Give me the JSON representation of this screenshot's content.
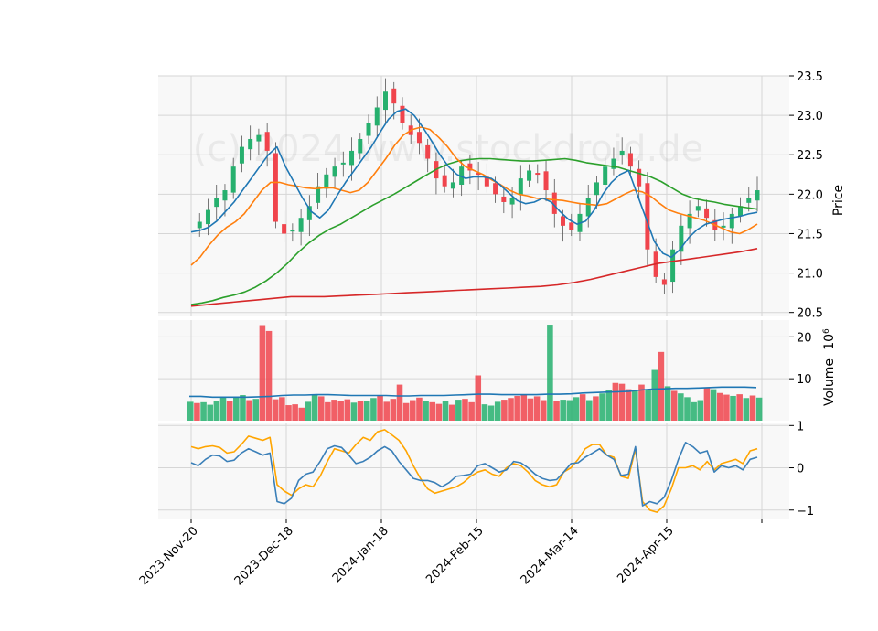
{
  "watermark": "(c) 2024 www.stockdroid.de",
  "colors": {
    "panel_bg": "#f8f8f8",
    "grid": "#d6d6d6",
    "up": "#26b06e",
    "down": "#f0444c",
    "ma_short": "#1f77b4",
    "ma_mid": "#ff7f0e",
    "ma_long": "#2ca02c",
    "ma_200": "#d62728",
    "vol_avg": "#1f77b4",
    "osc_a": "#3a7fb8",
    "osc_b": "#ffa500"
  },
  "chart_data": {
    "type": "candlestick",
    "x_tick_labels": [
      "2023-Nov-20",
      "2023-Dec-18",
      "2024-Jan-18",
      "2024-Feb-15",
      "2024-Mar-14",
      "2024-Apr-15"
    ],
    "price_panel": {
      "ylabel": "Price",
      "ylim": [
        20.45,
        23.5
      ],
      "yticks": [
        "20.5",
        "21.0",
        "21.5",
        "22.0",
        "22.5",
        "23.0",
        "23.5"
      ],
      "close_path": [
        21.6,
        21.65,
        21.8,
        21.95,
        22.05,
        22.35,
        22.6,
        22.7,
        22.75,
        22.55,
        21.65,
        21.5,
        21.55,
        21.7,
        21.85,
        22.1,
        22.25,
        22.35,
        22.4,
        22.55,
        22.7,
        22.9,
        23.1,
        23.3,
        23.15,
        22.9,
        22.75,
        22.65,
        22.45,
        22.2,
        22.1,
        22.15,
        22.35,
        22.3,
        22.25,
        22.1,
        22.0,
        21.9,
        21.95,
        22.2,
        22.3,
        22.25,
        22.05,
        21.75,
        21.6,
        21.55,
        21.75,
        21.95,
        22.15,
        22.35,
        22.45,
        22.55,
        22.35,
        22.1,
        21.3,
        20.95,
        20.85,
        21.3,
        21.6,
        21.75,
        21.85,
        21.7,
        21.55,
        21.6,
        21.75,
        21.85,
        21.95,
        22.05
      ],
      "ma_short": [
        21.52,
        21.54,
        21.58,
        21.66,
        21.78,
        21.9,
        22.05,
        22.2,
        22.35,
        22.5,
        22.6,
        22.35,
        22.15,
        21.95,
        21.78,
        21.7,
        21.8,
        21.98,
        22.15,
        22.3,
        22.45,
        22.6,
        22.78,
        22.95,
        23.05,
        23.08,
        23.0,
        22.85,
        22.68,
        22.5,
        22.35,
        22.25,
        22.2,
        22.22,
        22.22,
        22.2,
        22.12,
        22.02,
        21.92,
        21.88,
        21.9,
        21.95,
        21.9,
        21.78,
        21.68,
        21.62,
        21.66,
        21.8,
        22.0,
        22.15,
        22.25,
        22.3,
        22.0,
        21.7,
        21.4,
        21.25,
        21.2,
        21.3,
        21.45,
        21.55,
        21.62,
        21.65,
        21.68,
        21.7,
        21.72,
        21.75,
        21.77
      ],
      "ma_mid": [
        21.1,
        21.2,
        21.35,
        21.48,
        21.58,
        21.65,
        21.75,
        21.9,
        22.05,
        22.15,
        22.15,
        22.12,
        22.1,
        22.08,
        22.07,
        22.08,
        22.08,
        22.05,
        22.02,
        22.05,
        22.15,
        22.3,
        22.45,
        22.62,
        22.75,
        22.82,
        22.85,
        22.82,
        22.72,
        22.6,
        22.45,
        22.35,
        22.3,
        22.25,
        22.18,
        22.12,
        22.05,
        22.0,
        21.98,
        21.95,
        21.94,
        21.93,
        21.92,
        21.9,
        21.88,
        21.87,
        21.86,
        21.88,
        21.94,
        22.0,
        22.05,
        22.03,
        21.97,
        21.88,
        21.8,
        21.76,
        21.73,
        21.7,
        21.67,
        21.62,
        21.57,
        21.52,
        21.5,
        21.55,
        21.62
      ],
      "ma_long": [
        20.6,
        20.62,
        20.65,
        20.69,
        20.72,
        20.76,
        20.82,
        20.9,
        21.0,
        21.12,
        21.26,
        21.38,
        21.48,
        21.56,
        21.62,
        21.7,
        21.78,
        21.86,
        21.93,
        22.0,
        22.08,
        22.16,
        22.24,
        22.32,
        22.38,
        22.42,
        22.44,
        22.45,
        22.45,
        22.44,
        22.43,
        22.42,
        22.42,
        22.43,
        22.44,
        22.45,
        22.43,
        22.4,
        22.38,
        22.36,
        22.34,
        22.3,
        22.26,
        22.22,
        22.16,
        22.08,
        22.0,
        21.95,
        21.92,
        21.9,
        21.87,
        21.85,
        21.83,
        21.81
      ],
      "ma_200": [
        20.58,
        20.6,
        20.62,
        20.64,
        20.66,
        20.68,
        20.7,
        20.7,
        20.7,
        20.71,
        20.72,
        20.73,
        20.74,
        20.75,
        20.76,
        20.77,
        20.78,
        20.79,
        20.8,
        20.81,
        20.82,
        20.83,
        20.85,
        20.88,
        20.92,
        20.97,
        21.02,
        21.07,
        21.12,
        21.15,
        21.18,
        21.21,
        21.24,
        21.27,
        21.31
      ]
    },
    "volume_panel": {
      "ylabel": "Volume",
      "unit": "10^6",
      "yticks": [
        "10",
        "20"
      ],
      "ylim": [
        0,
        24
      ],
      "bars_millions": [
        4.5,
        4.2,
        4.4,
        3.8,
        4.6,
        5.5,
        4.8,
        5.6,
        6.1,
        4.9,
        5.2,
        22.8,
        21.4,
        5.1,
        5.6,
        3.7,
        3.9,
        3.1,
        4.5,
        6.3,
        5.8,
        4.4,
        5.0,
        4.6,
        5.1,
        4.3,
        4.6,
        4.8,
        5.4,
        6.0,
        4.5,
        5.2,
        8.6,
        4.2,
        4.9,
        5.5,
        4.8,
        4.4,
        4.0,
        4.7,
        3.8,
        5.0,
        5.2,
        4.4,
        10.8,
        3.9,
        3.6,
        4.5,
        5.0,
        5.4,
        5.9,
        6.2,
        5.3,
        5.8,
        4.9,
        22.9,
        4.6,
        5.0,
        4.9,
        5.6,
        6.3,
        4.9,
        5.8,
        6.5,
        7.4,
        9.0,
        8.8,
        7.5,
        7.1,
        8.6,
        7.2,
        12.1,
        16.4,
        8.2,
        7.1,
        6.5,
        5.6,
        4.4,
        4.9,
        7.9,
        7.5,
        6.6,
        6.2,
        5.9,
        6.3,
        5.4,
        6.0,
        5.5
      ],
      "bar_colors": [
        "up",
        "down",
        "up",
        "up",
        "up",
        "up",
        "down",
        "up",
        "up",
        "down",
        "up",
        "down",
        "down",
        "down",
        "down",
        "down",
        "down",
        "down",
        "up",
        "up",
        "down",
        "down",
        "down",
        "down",
        "down",
        "up",
        "down",
        "up",
        "up",
        "down",
        "down",
        "down",
        "down",
        "down",
        "down",
        "down",
        "up",
        "down",
        "down",
        "up",
        "down",
        "up",
        "down",
        "down",
        "down",
        "up",
        "up",
        "up",
        "down",
        "down",
        "down",
        "down",
        "down",
        "down",
        "down",
        "up",
        "down",
        "up",
        "up",
        "up",
        "down",
        "up",
        "down",
        "up",
        "up",
        "down",
        "down",
        "down",
        "up",
        "down",
        "up",
        "up",
        "down",
        "up",
        "down",
        "up",
        "up",
        "up",
        "up",
        "down",
        "up",
        "down",
        "down",
        "up",
        "down",
        "up",
        "down",
        "up"
      ],
      "avg_millions": [
        5.8,
        5.8,
        5.6,
        5.6,
        5.6,
        5.6,
        5.7,
        5.8,
        6.0,
        6.1,
        6.1,
        6.2,
        6.2,
        6.1,
        6.0,
        6.0,
        6.0,
        6.0,
        5.9,
        5.9,
        6.0,
        6.0,
        6.0,
        6.1,
        6.2,
        6.3,
        6.3,
        6.2,
        6.2,
        6.2,
        6.2,
        6.3,
        6.3,
        6.4,
        6.6,
        6.7,
        6.8,
        6.9,
        7.0,
        7.3,
        7.5,
        7.6,
        7.7,
        7.7,
        7.8,
        7.9,
        8.0,
        8.0,
        8.0,
        7.9
      ]
    },
    "oscillator_panel": {
      "yticks": [
        "1",
        "0",
        "−1"
      ],
      "ylim": [
        -1.2,
        1.05
      ],
      "line_a": [
        0.12,
        0.05,
        0.2,
        0.3,
        0.28,
        0.15,
        0.18,
        0.35,
        0.45,
        0.38,
        0.3,
        0.35,
        -0.8,
        -0.85,
        -0.72,
        -0.3,
        -0.15,
        -0.1,
        0.15,
        0.45,
        0.52,
        0.48,
        0.3,
        0.1,
        0.15,
        0.25,
        0.4,
        0.5,
        0.4,
        0.15,
        -0.05,
        -0.25,
        -0.3,
        -0.3,
        -0.35,
        -0.45,
        -0.35,
        -0.2,
        -0.18,
        -0.15,
        0.05,
        0.1,
        0.0,
        -0.1,
        -0.05,
        0.15,
        0.12,
        0.0,
        -0.15,
        -0.25,
        -0.3,
        -0.28,
        -0.1,
        0.1,
        0.12,
        0.25,
        0.35,
        0.45,
        0.3,
        0.2,
        -0.18,
        -0.15,
        0.5,
        -0.9,
        -0.8,
        -0.85,
        -0.7,
        -0.3,
        0.2,
        0.6,
        0.5,
        0.35,
        0.4,
        -0.1,
        0.05,
        0.0,
        0.05,
        -0.05,
        0.2,
        0.25
      ],
      "line_b": [
        0.5,
        0.45,
        0.5,
        0.52,
        0.48,
        0.35,
        0.38,
        0.55,
        0.75,
        0.7,
        0.65,
        0.72,
        -0.4,
        -0.55,
        -0.65,
        -0.5,
        -0.4,
        -0.45,
        -0.2,
        0.15,
        0.45,
        0.4,
        0.35,
        0.55,
        0.72,
        0.65,
        0.85,
        0.9,
        0.78,
        0.65,
        0.4,
        0.05,
        -0.25,
        -0.5,
        -0.6,
        -0.55,
        -0.5,
        -0.45,
        -0.35,
        -0.2,
        -0.1,
        -0.05,
        -0.15,
        -0.2,
        0.0,
        0.1,
        0.05,
        -0.1,
        -0.3,
        -0.4,
        -0.45,
        -0.4,
        -0.1,
        0.0,
        0.2,
        0.45,
        0.55,
        0.55,
        0.3,
        0.25,
        -0.2,
        -0.25,
        0.45,
        -0.8,
        -1.0,
        -1.05,
        -0.9,
        -0.5,
        0.0,
        0.0,
        0.05,
        -0.05,
        0.15,
        -0.05,
        0.1,
        0.15,
        0.2,
        0.1,
        0.4,
        0.45
      ]
    }
  }
}
